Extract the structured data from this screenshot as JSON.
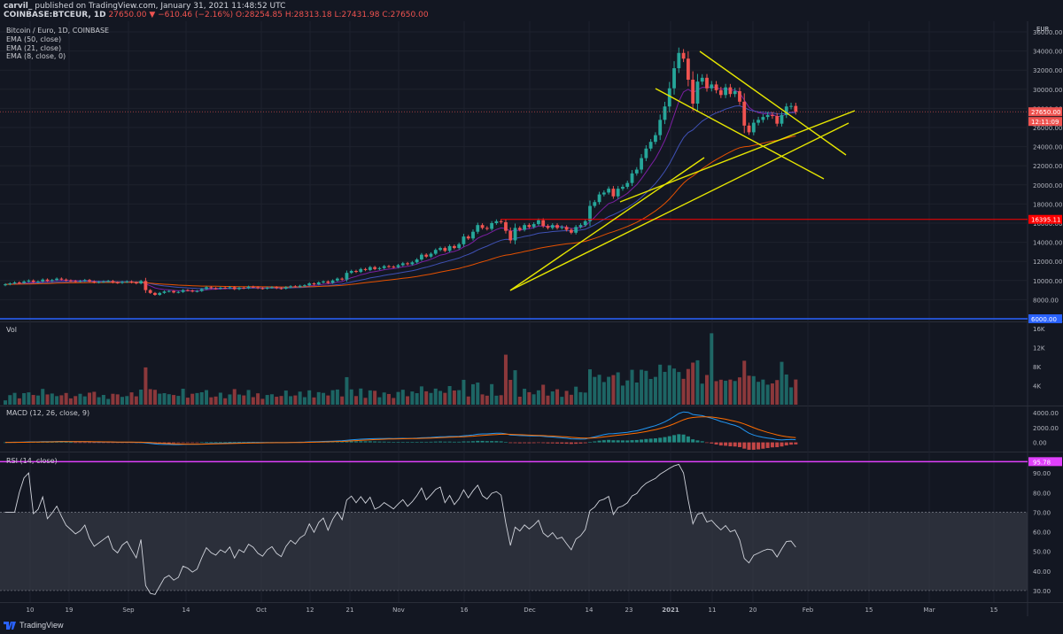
{
  "header": {
    "author": "carvil_",
    "published": "published on TradingView.com, January 31, 2021 11:48:52 UTC",
    "symbol": "COINBASE:BTCEUR, 1D",
    "change": "27650.00 ▼ −610.46 (−2.16%)",
    "open": "O:28254.85",
    "high": "H:28313.18",
    "low": "L:27431.98",
    "close": "C:27650.00"
  },
  "legend": {
    "title": "Bitcoin / Euro, 1D, COINBASE",
    "ema50": "EMA (50, close)",
    "ema21": "EMA (21, close)",
    "ema8": "EMA (8, close, 0)",
    "vol": "Vol",
    "macd": "MACD (12, 26, close, 9)",
    "rsi": "RSI (14, close)"
  },
  "footer": {
    "brand": "TradingView"
  },
  "colors": {
    "bg": "#131722",
    "grid": "#1e222d",
    "up": "#26a69a",
    "down": "#ef5350",
    "trend": "#e6e600",
    "ema8": "#7b1fa2",
    "ema21": "#3f51b5",
    "ema50": "#e65100",
    "support": "#ff0000",
    "blue_line": "#2962ff",
    "rsi_line": "#d1d4dc",
    "rsi_band": "#363a45",
    "rsi_hl": "#e040fb"
  },
  "chart_data": [
    {
      "type": "candlestick",
      "title": "Bitcoin / Euro, 1D, COINBASE",
      "currency": "EUR",
      "ylim": [
        6000,
        36000
      ],
      "y_ticks": [
        "36000.00",
        "34000.00",
        "32000.00",
        "30000.00",
        "28000.00",
        "26000.00",
        "24000.00",
        "22000.00",
        "20000.00",
        "18000.00",
        "16000.00",
        "14000.00",
        "12000.00",
        "10000.00",
        "8000.00",
        "6000.00"
      ],
      "x_ticks": [
        "10",
        "19",
        "Sep",
        "14",
        "Oct",
        "12",
        "21",
        "Nov",
        "16",
        "Dec",
        "14",
        "23",
        "2021",
        "11",
        "20",
        "Feb",
        "15",
        "Mar",
        "15"
      ],
      "price_labels": {
        "last": "27650.00",
        "countdown": "12:11:09",
        "support": "16395.11",
        "blue": "6000.00"
      },
      "closes": [
        9600,
        9700,
        9800,
        9750,
        9900,
        10000,
        9850,
        9900,
        10100,
        9950,
        10050,
        10200,
        10100,
        10000,
        9950,
        9900,
        9950,
        10050,
        9900,
        9800,
        9850,
        9900,
        9950,
        9800,
        9750,
        9850,
        9900,
        9800,
        9700,
        9950,
        9000,
        8700,
        8500,
        8700,
        8850,
        8900,
        8750,
        8800,
        9000,
        8950,
        8850,
        8900,
        9100,
        9300,
        9200,
        9150,
        9250,
        9200,
        9300,
        9100,
        9250,
        9200,
        9350,
        9300,
        9200,
        9150,
        9250,
        9300,
        9200,
        9150,
        9300,
        9400,
        9350,
        9450,
        9500,
        9700,
        9600,
        9800,
        9900,
        9750,
        10000,
        10200,
        10100,
        10800,
        11000,
        10900,
        11200,
        11100,
        11400,
        11200,
        11300,
        11500,
        11450,
        11400,
        11600,
        11800,
        11700,
        11900,
        12200,
        12700,
        12500,
        12800,
        13200,
        13400,
        13100,
        13600,
        13400,
        13800,
        14600,
        14400,
        15100,
        15800,
        15500,
        15400,
        16000,
        16200,
        16100,
        15200,
        14200,
        15500,
        15300,
        15800,
        15600,
        15900,
        16300,
        15700,
        15500,
        15800,
        15500,
        15600,
        15300,
        15000,
        15600,
        15800,
        16200,
        17800,
        18200,
        19000,
        19200,
        19600,
        18800,
        19600,
        19800,
        20200,
        21200,
        21600,
        22800,
        23800,
        24500,
        25200,
        26800,
        28200,
        30100,
        32200,
        33800,
        33200,
        31000,
        28500,
        30800,
        31200,
        30100,
        30500,
        29900,
        29400,
        30200,
        29500,
        29800,
        28700,
        26200,
        25500,
        26500,
        26800,
        27100,
        27300,
        27200,
        26400,
        27300,
        28200,
        28254,
        27650
      ],
      "ema8_last": 27000,
      "ema21_last": 26500,
      "ema50_last": 25200,
      "support_level": 16395.11
    },
    {
      "type": "bar",
      "title": "Vol",
      "ylim": [
        0,
        16000
      ],
      "y_ticks": [
        "16K",
        "12K",
        "8K",
        "4K"
      ]
    },
    {
      "type": "line",
      "title": "MACD (12, 26, close, 9)",
      "ylim": [
        -1000,
        4000
      ],
      "y_ticks": [
        "4000.00",
        "2000.00",
        "0.00"
      ]
    },
    {
      "type": "line",
      "title": "RSI (14, close)",
      "ylim": [
        25,
        100
      ],
      "y_ticks": [
        "90.00",
        "80.00",
        "70.00",
        "60.00",
        "50.00",
        "40.00",
        "30.00"
      ],
      "current_label": "95.78",
      "band": [
        30,
        70
      ]
    }
  ]
}
